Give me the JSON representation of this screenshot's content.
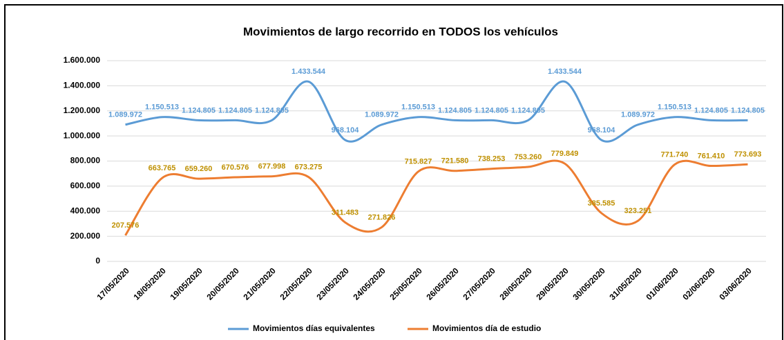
{
  "chart_data": {
    "type": "line",
    "title": "Movimientos de largo recorrido en TODOS los vehículos",
    "categories": [
      "17/05/2020",
      "18/05/2020",
      "19/05/2020",
      "20/05/2020",
      "21/05/2020",
      "22/05/2020",
      "23/05/2020",
      "24/05/2020",
      "25/05/2020",
      "26/05/2020",
      "27/05/2020",
      "28/05/2020",
      "29/05/2020",
      "30/05/2020",
      "31/05/2020",
      "01/06/2020",
      "02/06/2020",
      "03/06/2020"
    ],
    "series": [
      {
        "name": "Movimientos días equivalentes",
        "color": "#5b9bd5",
        "values": [
          1089972,
          1150513,
          1124805,
          1124805,
          1124805,
          1433544,
          968104,
          1089972,
          1150513,
          1124805,
          1124805,
          1124805,
          1433544,
          968104,
          1089972,
          1150513,
          1124805,
          1124805
        ],
        "value_labels": [
          "1.089.972",
          "1.150.513",
          "1.124.805",
          "1.124.805",
          "1.124.805",
          "1.433.544",
          "968.104",
          "1.089.972",
          "1.150.513",
          "1.124.805",
          "1.124.805",
          "1.124.805",
          "1.433.544",
          "968.104",
          "1.089.972",
          "1.150.513",
          "1.124.805",
          "1.124.805"
        ]
      },
      {
        "name": "Movimientos día de estudio",
        "color": "#ed7d31",
        "values": [
          207576,
          663765,
          659260,
          670576,
          677998,
          673275,
          311483,
          271826,
          715827,
          721580,
          738253,
          753260,
          779849,
          385585,
          323251,
          771740,
          761410,
          773693
        ],
        "value_labels": [
          "207.576",
          "663.765",
          "659.260",
          "670.576",
          "677.998",
          "673.275",
          "311.483",
          "271.826",
          "715.827",
          "721.580",
          "738.253",
          "753.260",
          "779.849",
          "385.585",
          "323.251",
          "771.740",
          "761.410",
          "773.693"
        ]
      }
    ],
    "ylim": [
      0,
      1600000
    ],
    "yticks": [
      0,
      {
        "value": 200000,
        "label": "200.000"
      },
      {
        "value": 400000,
        "label": "400.000"
      },
      {
        "value": 600000,
        "label": "600.000"
      },
      {
        "value": 800000,
        "label": "800.000"
      },
      {
        "value": 1000000,
        "label": "1.000.000"
      },
      {
        "value": 1200000,
        "label": "1.200.000"
      },
      {
        "value": 1400000,
        "label": "1.400.000"
      },
      {
        "value": 1600000,
        "label": "1.600.000"
      }
    ],
    "grid": true,
    "smooth": true,
    "legend": "bottom"
  }
}
